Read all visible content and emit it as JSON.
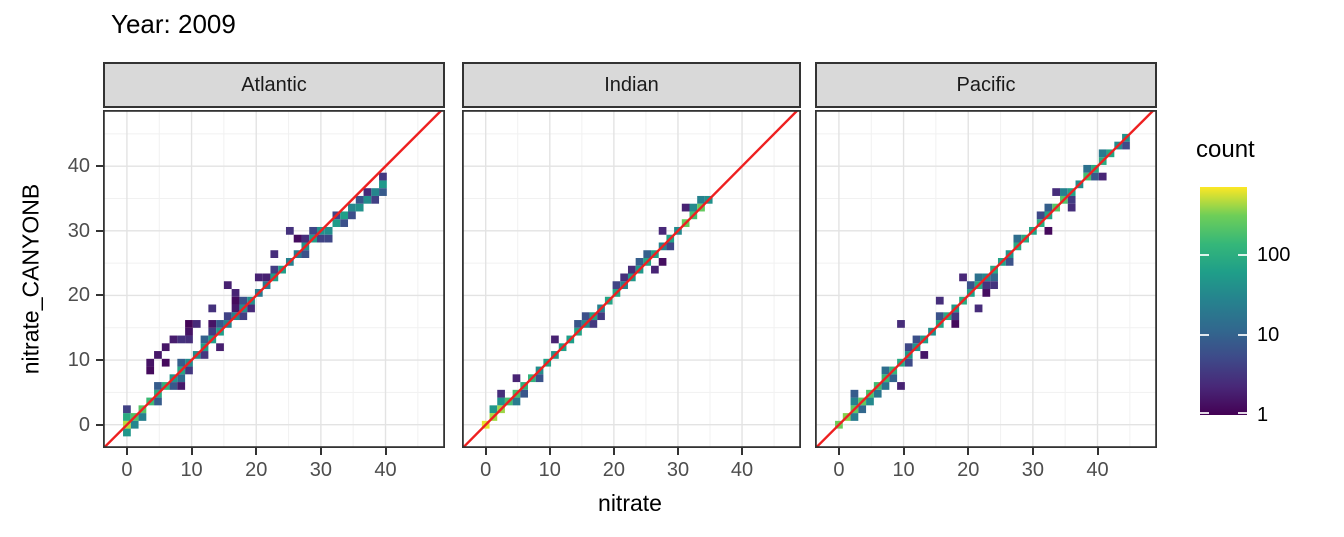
{
  "page": {
    "background": "#ffffff"
  },
  "chart_data": {
    "type": "heatmap",
    "subtype": "bin2d_faceted_scatter_density",
    "title": "Year: 2009",
    "xlabel": "nitrate",
    "ylabel": "nitrate_CANYONB",
    "x_ticks": [
      0,
      10,
      20,
      30,
      40
    ],
    "y_ticks": [
      0,
      10,
      20,
      30,
      40
    ],
    "x_range": [
      -3.7,
      49.2
    ],
    "y_range": [
      -3.6,
      48.7
    ],
    "bin_size": 1.2,
    "grid": {
      "major": [
        0,
        10,
        20,
        30,
        40
      ],
      "minor": [
        5,
        15,
        25,
        35,
        45
      ],
      "on": true
    },
    "identity_line": {
      "slope": 1,
      "intercept": 0,
      "color": "#ee2020"
    },
    "legend": {
      "title": "count",
      "position": "right",
      "scale": "log10",
      "tick_labels": [
        "100",
        "10",
        "1"
      ],
      "tick_values": [
        100,
        10,
        1
      ],
      "max_count": 700,
      "colormap": "viridis"
    },
    "theme": {
      "strip_bg": "#d9d9d9",
      "panel_bg": "#ffffff",
      "panel_border": "#333333",
      "grid_major_color": "#e3e3e3",
      "grid_minor_color": "#f1f1f1",
      "tick_label_color": "#4d4d4d",
      "text_color": "#000000"
    },
    "facets": [
      {
        "label": "Atlantic",
        "x_min": 0,
        "x_max": 40.3,
        "description": "dense diagonal band y≈x from 0 to 40, flattening to y≈37 at x=40, wide purple scatter mostly above the line for x<15, green-teal core, green hotspot at origin",
        "end_flatten_start": 29,
        "end_flatten_rate": 0.28,
        "origin_count": 260,
        "origin_tau": 3.2,
        "base_count": 34,
        "spread": {
          "low_range_max": 15,
          "low": 1.9,
          "high": 1.0
        },
        "hot_spots": [],
        "outliers": [
          [
            3.5,
            8
          ],
          [
            4,
            10
          ],
          [
            5,
            11
          ],
          [
            5.5,
            12.5
          ],
          [
            6.5,
            10
          ],
          [
            7,
            13
          ],
          [
            8,
            13.5
          ],
          [
            9,
            14.5
          ],
          [
            9.5,
            13
          ],
          [
            10,
            16
          ],
          [
            11,
            15.5
          ],
          [
            13,
            18
          ],
          [
            14,
            11.5
          ],
          [
            16,
            21.5
          ],
          [
            16.5,
            19.5
          ],
          [
            17,
            20.5
          ],
          [
            20,
            23
          ],
          [
            23,
            26
          ],
          [
            25.5,
            30
          ],
          [
            26,
            29
          ],
          [
            33,
            31
          ]
        ]
      },
      {
        "label": "Indian",
        "x_min": 0,
        "x_max": 35.4,
        "description": "very tight diagonal band y≈x from 0 to 35, yellow hotspot at origin, green cluster near 31-33, slight purple bulge below line at 26-29",
        "end_flatten_start": null,
        "end_flatten_rate": 0,
        "origin_count": 650,
        "origin_tau": 2.4,
        "base_count": 40,
        "spread": {
          "low_range_max": 10,
          "low": 0.9,
          "high": 0.8
        },
        "hot_spots": [
          31.5,
          33
        ],
        "outliers": [
          [
            2,
            4.5
          ],
          [
            4.5,
            7
          ],
          [
            10.5,
            13
          ],
          [
            26.5,
            24.5
          ],
          [
            28,
            25.5
          ],
          [
            28.5,
            27
          ],
          [
            27,
            29.5
          ],
          [
            31,
            33.5
          ]
        ]
      },
      {
        "label": "Pacific",
        "x_min": 0,
        "x_max": 45.5,
        "description": "dense diagonal band y≈x from 0 to 45.5, yellow-green hotspot at origin and bright spots near 33-38, moderate purple scatter on both sides",
        "end_flatten_start": null,
        "end_flatten_rate": 0,
        "origin_count": 420,
        "origin_tau": 3.0,
        "base_count": 52,
        "spread": {
          "low_range_max": 12,
          "low": 1.4,
          "high": 1.0
        },
        "hot_spots": [
          33.5,
          35,
          38.5
        ],
        "outliers": [
          [
            9,
            6.5
          ],
          [
            9.5,
            15
          ],
          [
            13,
            10.5
          ],
          [
            15.5,
            19
          ],
          [
            16,
            19.5
          ],
          [
            18.5,
            16
          ],
          [
            19,
            22.5
          ],
          [
            21,
            18.5
          ],
          [
            23,
            20.5
          ],
          [
            24.5,
            22
          ],
          [
            32,
            29.5
          ],
          [
            34,
            36.5
          ],
          [
            36.5,
            34
          ],
          [
            40.5,
            38
          ]
        ]
      }
    ]
  }
}
